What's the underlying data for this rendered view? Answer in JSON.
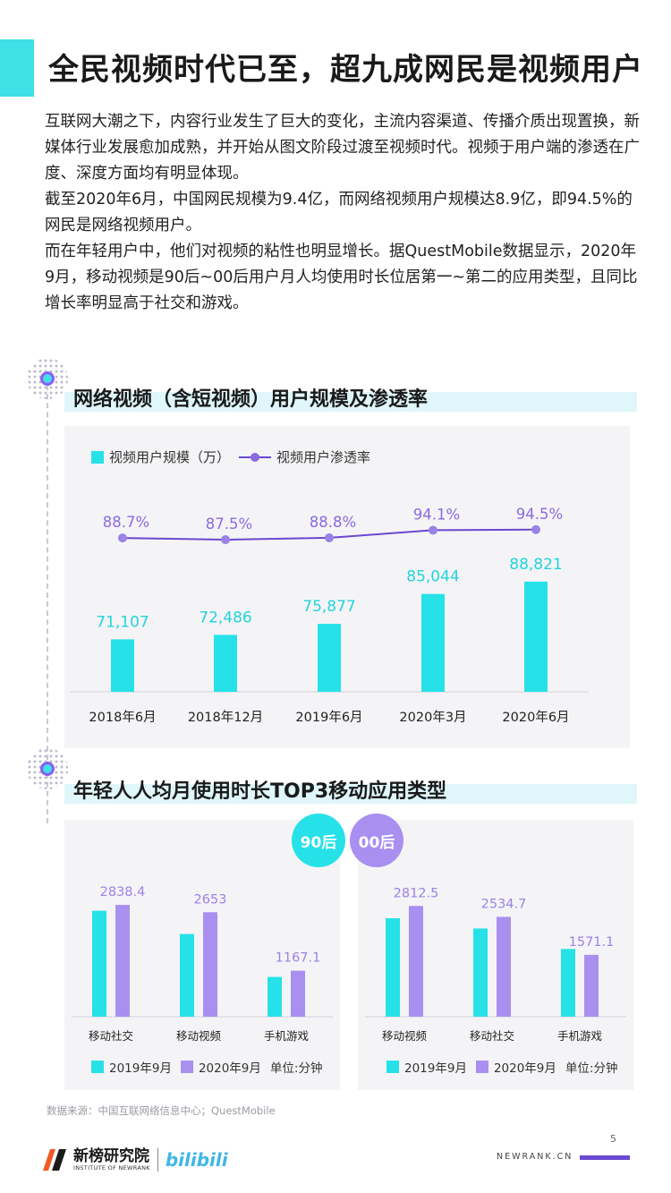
{
  "title": "全民视频时代已至，超九成网民是视频用户",
  "intro": [
    "互联网大潮之下，内容行业发生了巨大的变化，主流内容渠道、传播介质出现置换，新媒体行业发展愈加成熟，并开始从图文阶段过渡至视频时代。视频于用户端的渗透在广度、深度方面均有明显体现。",
    "截至2020年6月，中国网民规模为9.4亿，而网络视频用户规模达8.9亿，即94.5%的网民是网络视频用户。",
    "而在年轻用户中，他们对视频的粘性也明显增长。据QuestMobile数据显示，2020年9月，移动视频是90后~00后用户月人均使用时长位居第一~第二的应用类型，且同比增长率明显高于社交和游戏。"
  ],
  "section1": {
    "title": "网络视频（含短视频）用户规模及渗透率"
  },
  "section2": {
    "title": "年轻人人均月使用时长TOP3移动应用类型"
  },
  "colors": {
    "cyan": "#27e1e8",
    "purple": "#a98ff0",
    "line": "#6a48d0"
  },
  "chart_data": [
    {
      "type": "bar",
      "categories": [
        "2018年6月",
        "2018年12月",
        "2019年6月",
        "2020年3月",
        "2020年6月"
      ],
      "series": [
        {
          "name": "视频用户规模（万）",
          "type": "bar",
          "values": [
            71107,
            72486,
            75877,
            85044,
            88821
          ],
          "labels": [
            "71,107",
            "72,486",
            "75,877",
            "85,044",
            "88,821"
          ]
        },
        {
          "name": "视频用户渗透率",
          "type": "line",
          "values": [
            88.7,
            87.5,
            88.8,
            94.1,
            94.5
          ],
          "labels": [
            "88.7%",
            "87.5%",
            "88.8%",
            "94.1%",
            "94.5%"
          ]
        }
      ],
      "legend": "top-left",
      "grid": false
    },
    {
      "type": "bar",
      "badge": "90后",
      "categories": [
        "移动社交",
        "移动视频",
        "手机游戏"
      ],
      "series": [
        {
          "name": "2019年9月",
          "values": [
            2690,
            2100,
            1010
          ]
        },
        {
          "name": "2020年9月",
          "values": [
            2838.4,
            2653,
            1167.1
          ]
        }
      ],
      "value_labels": [
        "2838.4",
        "2653",
        "1167.1"
      ],
      "unit": "单位:分钟",
      "legend": "bottom",
      "grid": false
    },
    {
      "type": "bar",
      "badge": "00后",
      "categories": [
        "移动视频",
        "移动社交",
        "手机游戏"
      ],
      "series": [
        {
          "name": "2019年9月",
          "values": [
            2500,
            2240,
            1720
          ]
        },
        {
          "name": "2020年9月",
          "values": [
            2812.5,
            2534.7,
            1571.1
          ]
        }
      ],
      "value_labels": [
        "2812.5",
        "2534.7",
        "1571.1"
      ],
      "unit": "单位:分钟",
      "legend": "bottom",
      "grid": false
    }
  ],
  "source": "数据来源：中国互联网络信息中心；QuestMobile",
  "page_number": "5",
  "footer": {
    "brand_cn": "新榜研究院",
    "brand_en": "INSTITUTE OF NEWRANK",
    "partner": "bilibili",
    "site": "NEWRANK.CN"
  }
}
